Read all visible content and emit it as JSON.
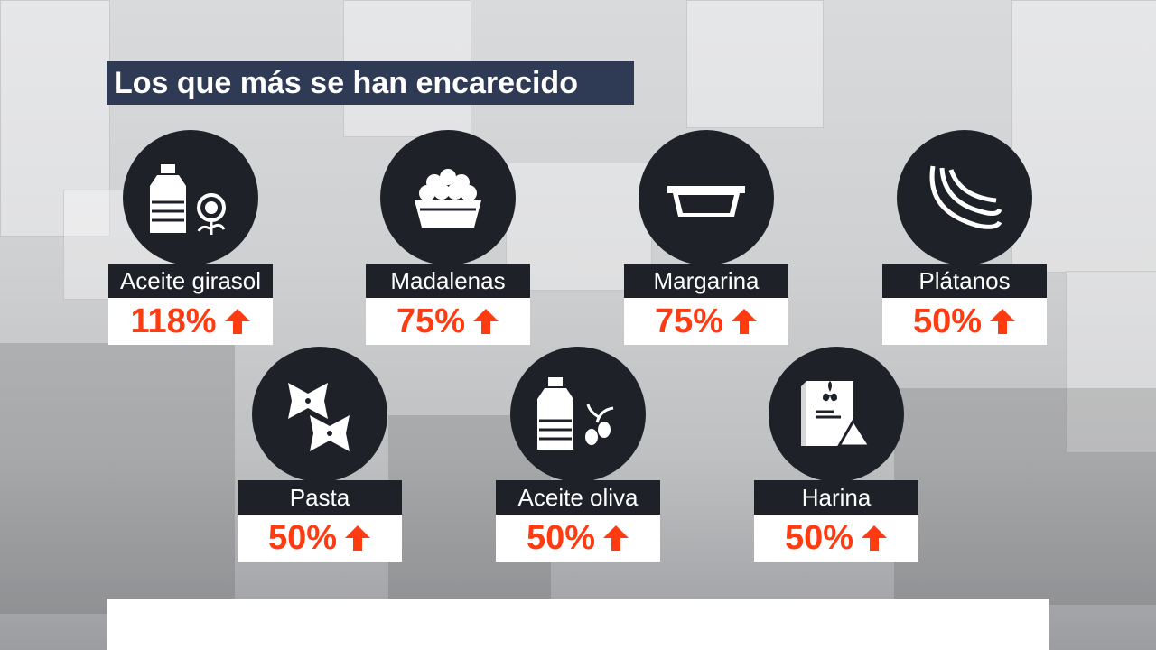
{
  "title": "Los que más se han encarecido",
  "accent_color": "#ff3b12",
  "items": [
    {
      "label": "Aceite girasol",
      "value": "118%",
      "icon": "sunflower-oil-bottle-icon"
    },
    {
      "label": "Madalenas",
      "value": "75%",
      "icon": "muffins-basket-icon"
    },
    {
      "label": "Margarina",
      "value": "75%",
      "icon": "margarine-tub-icon"
    },
    {
      "label": "Plátanos",
      "value": "50%",
      "icon": "bananas-icon"
    },
    {
      "label": "Pasta",
      "value": "50%",
      "icon": "pasta-bowtie-icon"
    },
    {
      "label": "Aceite oliva",
      "value": "50%",
      "icon": "olive-oil-bottle-icon"
    },
    {
      "label": "Harina",
      "value": "50%",
      "icon": "flour-bag-icon"
    }
  ]
}
